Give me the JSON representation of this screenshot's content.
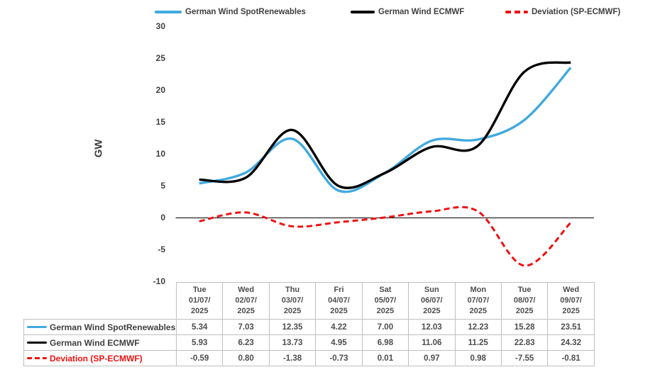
{
  "colors": {
    "legend_text": "#404040",
    "tick_text": "#404040",
    "value_text": "#4d4d4d",
    "table_border": "#BFBFBF",
    "axis_line": "#000000",
    "background": "#FFFFFF"
  },
  "chart_data": {
    "type": "line",
    "title": "",
    "ylabel": "GW",
    "xlabel": "",
    "ylim": [
      -10,
      30
    ],
    "yticks": [
      30,
      25,
      20,
      15,
      10,
      5,
      0,
      -5,
      -10
    ],
    "grid": false,
    "smooth": true,
    "legend_position": "top",
    "categories": [
      [
        "Tue",
        "01/07/",
        "2025"
      ],
      [
        "Wed",
        "02/07/",
        "2025"
      ],
      [
        "Thu",
        "03/07/",
        "2025"
      ],
      [
        "Fri",
        "04/07/",
        "2025"
      ],
      [
        "Sat",
        "05/07/",
        "2025"
      ],
      [
        "Sun",
        "06/07/",
        "2025"
      ],
      [
        "Mon",
        "07/07/",
        "2025"
      ],
      [
        "Tue",
        "08/07/",
        "2025"
      ],
      [
        "Wed",
        "09/07/",
        "2025"
      ]
    ],
    "series": [
      {
        "name": "German Wind SpotRenewables",
        "color": "#41A9DE",
        "dash": "solid",
        "label_color": "#404040",
        "values": [
          5.34,
          7.03,
          12.35,
          4.22,
          7.0,
          12.03,
          12.23,
          15.28,
          23.51
        ]
      },
      {
        "name": "German Wind ECMWF",
        "color": "#000000",
        "dash": "solid",
        "label_color": "#404040",
        "values": [
          5.93,
          6.23,
          13.73,
          4.95,
          6.98,
          11.06,
          11.25,
          22.83,
          24.32
        ]
      },
      {
        "name": "Deviation (SP-ECMWF)",
        "color": "#EE1111",
        "dash": "dashed",
        "label_color": "#EE1111",
        "values": [
          -0.59,
          0.8,
          -1.38,
          -0.73,
          0.01,
          0.97,
          0.98,
          -7.55,
          -0.81
        ]
      }
    ]
  }
}
